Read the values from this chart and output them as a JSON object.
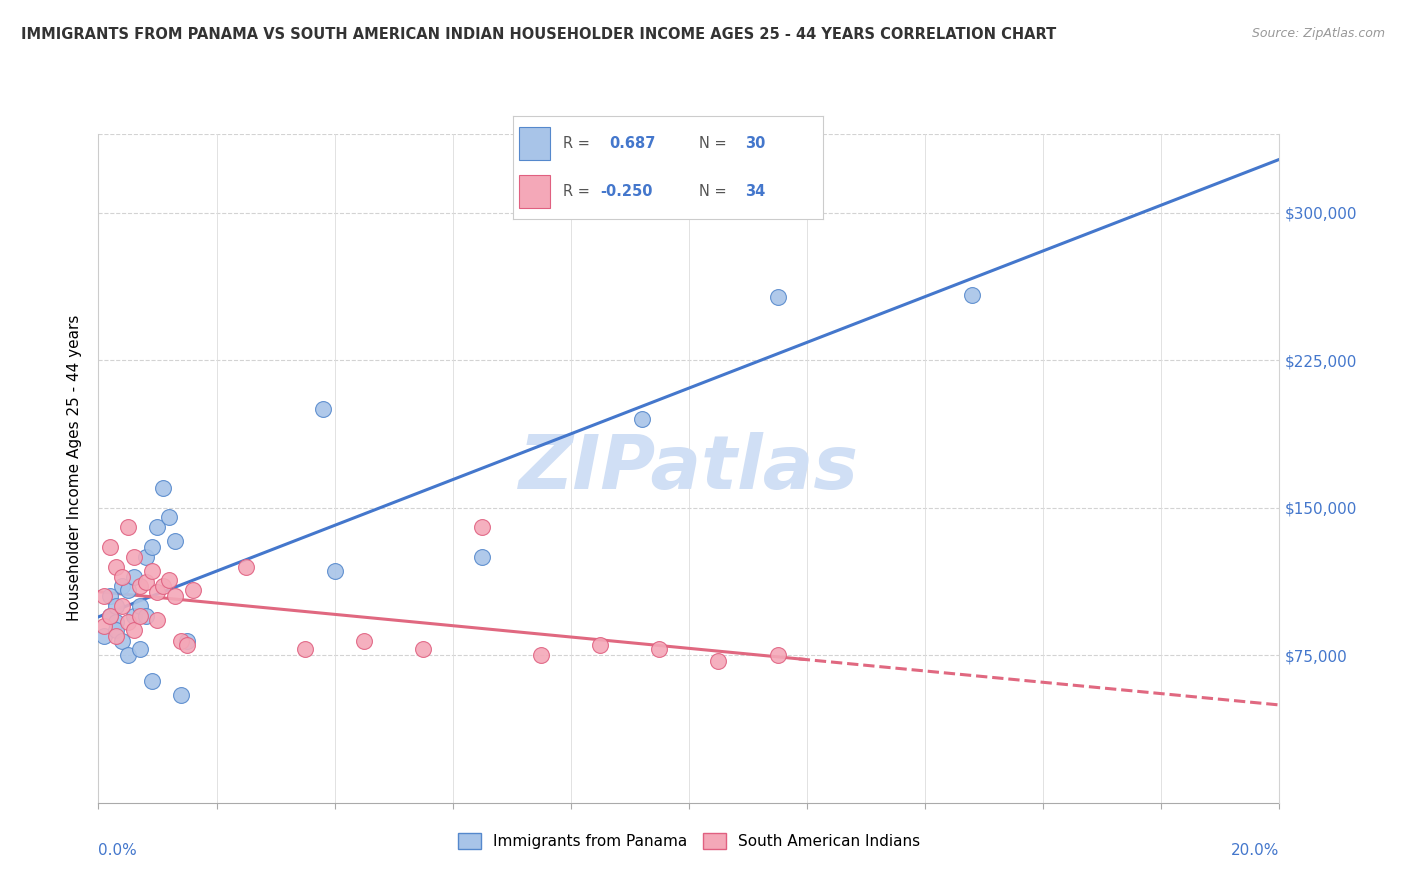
{
  "title": "IMMIGRANTS FROM PANAMA VS SOUTH AMERICAN INDIAN HOUSEHOLDER INCOME AGES 25 - 44 YEARS CORRELATION CHART",
  "source": "Source: ZipAtlas.com",
  "ylabel": "Householder Income Ages 25 - 44 years",
  "xlim": [
    0.0,
    0.2
  ],
  "ylim": [
    0,
    340000
  ],
  "yticks": [
    75000,
    150000,
    225000,
    300000
  ],
  "ytick_labels": [
    "$75,000",
    "$150,000",
    "$225,000",
    "$300,000"
  ],
  "r_panama": 0.687,
  "n_panama": 30,
  "r_indian": -0.25,
  "n_indian": 34,
  "blue_fill": "#a8c4e8",
  "pink_fill": "#f4a8b8",
  "blue_edge": "#5588cc",
  "pink_edge": "#e06080",
  "blue_line": "#4477cc",
  "pink_line": "#e06880",
  "watermark_color": "#d0dff5",
  "panama_x": [
    0.001,
    0.002,
    0.002,
    0.003,
    0.003,
    0.003,
    0.004,
    0.004,
    0.005,
    0.005,
    0.006,
    0.006,
    0.007,
    0.007,
    0.008,
    0.008,
    0.009,
    0.009,
    0.01,
    0.011,
    0.012,
    0.013,
    0.014,
    0.015,
    0.038,
    0.04,
    0.065,
    0.092,
    0.115,
    0.148
  ],
  "panama_y": [
    85000,
    95000,
    105000,
    92000,
    100000,
    88000,
    110000,
    82000,
    108000,
    75000,
    95000,
    115000,
    100000,
    78000,
    125000,
    95000,
    130000,
    62000,
    140000,
    160000,
    145000,
    133000,
    55000,
    82000,
    200000,
    118000,
    125000,
    195000,
    257000,
    258000
  ],
  "indian_x": [
    0.001,
    0.001,
    0.002,
    0.002,
    0.003,
    0.003,
    0.004,
    0.004,
    0.005,
    0.005,
    0.006,
    0.006,
    0.007,
    0.007,
    0.008,
    0.009,
    0.01,
    0.01,
    0.011,
    0.012,
    0.013,
    0.014,
    0.015,
    0.016,
    0.025,
    0.035,
    0.045,
    0.055,
    0.065,
    0.075,
    0.085,
    0.095,
    0.105,
    0.115
  ],
  "indian_y": [
    105000,
    90000,
    130000,
    95000,
    120000,
    85000,
    115000,
    100000,
    140000,
    92000,
    125000,
    88000,
    110000,
    95000,
    112000,
    118000,
    107000,
    93000,
    110000,
    113000,
    105000,
    82000,
    80000,
    108000,
    120000,
    78000,
    82000,
    78000,
    140000,
    75000,
    80000,
    78000,
    72000,
    75000
  ],
  "xtick_positions": [
    0.0,
    0.02,
    0.04,
    0.06,
    0.08,
    0.1,
    0.12,
    0.14,
    0.16,
    0.18,
    0.2
  ]
}
